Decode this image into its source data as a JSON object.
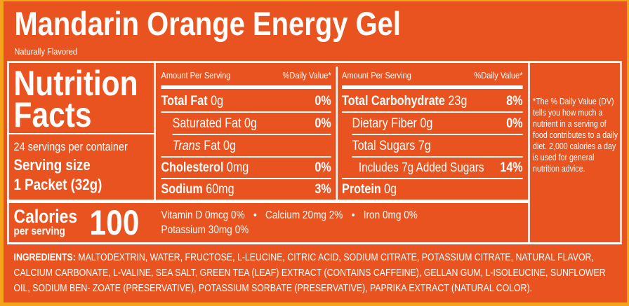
{
  "header": {
    "title": "Mandarin Orange Energy Gel",
    "subtitle": "Naturally Flavored"
  },
  "facts": {
    "title_line1": "Nutrition",
    "title_line2": "Facts",
    "servings": "24 servings per container",
    "serving_size_label": "Serving size",
    "serving_size": "1 Packet (32g)",
    "calories_label": "Calories",
    "calories_sub": "per serving",
    "calories": 100
  },
  "left_table": {
    "header": [
      "Amount Per Serving",
      "%Daily Value*"
    ],
    "rows": [
      {
        "label": "Total Fat",
        "amount": "0g",
        "dv": "0%"
      },
      {
        "label": "Saturated Fat",
        "amount": "0g",
        "dv": "0%"
      },
      {
        "label_italic": "Trans",
        "label": "Fat",
        "amount": "0g"
      },
      {
        "label": "Cholesterol",
        "amount": "0mg",
        "dv": "0%"
      },
      {
        "label": "Sodium",
        "amount": "60mg",
        "dv": "3%"
      }
    ]
  },
  "right_table": {
    "header": [
      "Amount Per Serving",
      "%Daily Value*"
    ],
    "rows": [
      {
        "label": "Total Carbohydrate",
        "amount": "23g",
        "dv": "8%"
      },
      {
        "label": "Dietary Fiber",
        "amount": "0g",
        "dv": "0%"
      },
      {
        "label": "Total Sugars",
        "amount": "7g"
      },
      {
        "label": "Includes",
        "amount": "7g Added Sugars",
        "dv": "14%"
      },
      {
        "label": "Protein",
        "amount": "0g"
      }
    ]
  },
  "vitamins": [
    {
      "name": "Vitamin D",
      "amount": "0mcg",
      "dv": "0%"
    },
    {
      "name": "Calcium",
      "amount": "20mg",
      "dv": "2%"
    },
    {
      "name": "Iron",
      "amount": "0mg",
      "dv": "0%"
    },
    {
      "name": "Potassium",
      "amount": "30mg",
      "dv": "0%"
    }
  ],
  "footnote": "*The % Daily Value (DV) tells you how much a nutrient in a serving of food contributes to a daily diet. 2,000 calories a day is used for general nutrition advice.",
  "ingredients": {
    "label": "INGREDIENTS:",
    "text": "MALTODEXTRIN, WATER, FRUCTOSE, L-LEUCINE, CITRIC ACID, SODIUM CITRATE, POTASSIUM CITRATE, NATURAL FLAVOR, CALCIUM CARBONATE, L-VALINE, SEA SALT, GREEN TEA (LEAF) EXTRACT (CONTAINS CAFFEINE), GELLAN GUM, L-ISOLEUCINE, SUNFLOWER OIL, SODIUM BEN- ZOATE (PRESERVATIVE), POTASSIUM SORBATE (PRESERVATIVE), PAPRIKA EXTRACT (NATURAL COLOR)."
  }
}
